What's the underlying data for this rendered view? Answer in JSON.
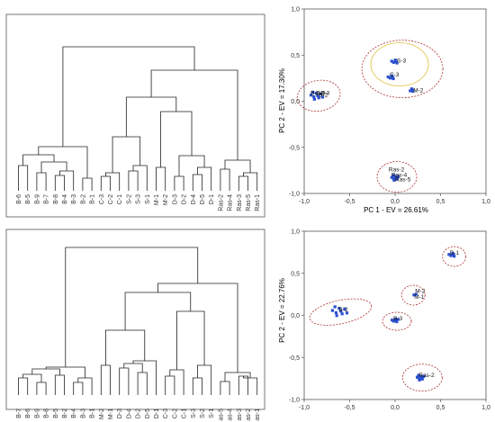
{
  "colors": {
    "frame": "#555555",
    "line": "#222222",
    "point": "#2a4fd0",
    "ellipse": "#b03030",
    "hull": "#e0c040",
    "tick": "#333333"
  },
  "chart_data": [
    {
      "type": "dendrogram",
      "leaves": [
        "B-6",
        "B-5",
        "B-9",
        "B-7",
        "B-8",
        "B-4",
        "B-3",
        "B-2",
        "B-1",
        "C-3",
        "C-2",
        "C-1",
        "S-2",
        "S-3",
        "S-1",
        "M-1",
        "M-2",
        "D-3",
        "D-2",
        "D-4",
        "D-5",
        "D-1",
        "Ras-2",
        "Ras-4",
        "Ras-3",
        "Ras-5",
        "Ras-1"
      ]
    },
    {
      "type": "scatter",
      "xlabel": "PC 1 - EV = 26.61%",
      "ylabel": "PC 2 - EV = 17.30%",
      "xlim": [
        -1.0,
        1.0
      ],
      "ylim": [
        -1.0,
        1.0
      ],
      "xticks": [
        "-1,0",
        "-0,5",
        "0,0",
        "0,5",
        "1,0"
      ],
      "yticks": [
        "1,0",
        "0,5",
        "0,0",
        "-0,5",
        "-1,0"
      ],
      "labels": [
        {
          "text": "B-8",
          "x": -0.93,
          "y": 0.07
        },
        {
          "text": "B-9",
          "x": -0.87,
          "y": 0.07
        },
        {
          "text": "B-3",
          "x": -0.82,
          "y": 0.07
        },
        {
          "text": "B-2",
          "x": -0.84,
          "y": 0.05
        },
        {
          "text": "S-3",
          "x": 0.02,
          "y": 0.42
        },
        {
          "text": "C-3",
          "x": -0.06,
          "y": 0.27
        },
        {
          "text": "M-2",
          "x": 0.2,
          "y": 0.1
        },
        {
          "text": "Ras-2",
          "x": -0.07,
          "y": -0.76
        },
        {
          "text": "Ras-4",
          "x": -0.04,
          "y": -0.82
        },
        {
          "text": "Ras-5",
          "x": 0.0,
          "y": -0.87
        }
      ]
    },
    {
      "type": "dendrogram",
      "leaves": [
        "B-7",
        "B-6",
        "B-9",
        "B-8",
        "B-5",
        "B-2",
        "B-4",
        "B-3",
        "B-1",
        "M-2",
        "M-1",
        "D-3",
        "D-4",
        "D-2",
        "D-5",
        "D-1",
        "C-3",
        "C-2",
        "C-1",
        "S-3",
        "S-2",
        "S-1",
        "as-5",
        "as-4",
        "as-3",
        "as-2",
        "as-1"
      ]
    },
    {
      "type": "scatter",
      "ylabel": "PC 2 - EV = 22.76%",
      "xlim": [
        -1.0,
        1.0
      ],
      "ylim": [
        -1.0,
        1.0
      ],
      "xticks": [
        "-1,0",
        "-0,5",
        "0,0",
        "0,5",
        "1,0"
      ],
      "yticks": [
        "1,0",
        "0,5",
        "0,0",
        "-0,5",
        "-1,0"
      ],
      "labels": [
        {
          "text": "D-1",
          "x": 0.6,
          "y": 0.72
        },
        {
          "text": "M-2",
          "x": 0.22,
          "y": 0.27
        },
        {
          "text": "M-1",
          "x": 0.21,
          "y": 0.2
        },
        {
          "text": "B-2",
          "x": -0.62,
          "y": 0.05
        },
        {
          "text": "B-3",
          "x": -0.02,
          "y": -0.06
        },
        {
          "text": "Ras-2",
          "x": 0.26,
          "y": -0.73
        }
      ]
    }
  ]
}
